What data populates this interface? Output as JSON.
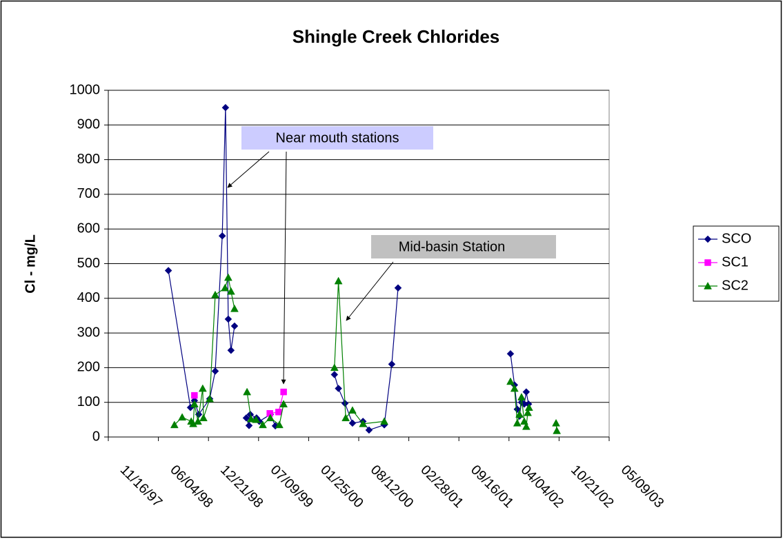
{
  "chart_data": {
    "type": "line",
    "title": "Shingle Creek Chlorides",
    "ylabel": "Cl - mg/L",
    "xlim": [
      "1997-11-16",
      "2003-05-09"
    ],
    "xticks": [
      {
        "value": "1997-11-16",
        "label": "11/16/97"
      },
      {
        "value": "1998-06-04",
        "label": "06/04/98"
      },
      {
        "value": "1998-12-21",
        "label": "12/21/98"
      },
      {
        "value": "1999-07-09",
        "label": "07/09/99"
      },
      {
        "value": "2000-01-25",
        "label": "01/25/00"
      },
      {
        "value": "2000-08-12",
        "label": "08/12/00"
      },
      {
        "value": "2001-02-28",
        "label": "02/28/01"
      },
      {
        "value": "2001-09-16",
        "label": "09/16/01"
      },
      {
        "value": "2002-04-04",
        "label": "04/04/02"
      },
      {
        "value": "2002-10-21",
        "label": "10/21/02"
      },
      {
        "value": "2003-05-09",
        "label": "05/09/03"
      }
    ],
    "ylim": [
      0,
      1000
    ],
    "yticks": [
      0,
      100,
      200,
      300,
      400,
      500,
      600,
      700,
      800,
      900,
      1000
    ],
    "grid": true,
    "legend": "right",
    "series": [
      {
        "name": "SCO",
        "color": "#000080",
        "marker": "diamond",
        "x": [
          "1998-07-14",
          "1998-10-10",
          "1998-10-26",
          "1998-11-12",
          "1998-12-26",
          "1999-01-17",
          "1999-02-14",
          "1999-02-27",
          "1999-03-10",
          "1999-03-21",
          "1999-04-04",
          null,
          "1999-05-21",
          "1999-06-01",
          "1999-06-06",
          "1999-07-01",
          "1999-07-12",
          "1999-08-25",
          "1999-09-14",
          null,
          "2000-05-07",
          "2000-05-23",
          "2000-06-18",
          "2000-07-18",
          "2000-08-29",
          "2000-09-22",
          "2000-11-22",
          "2000-12-22",
          "2001-01-16",
          null,
          "2002-04-10",
          "2002-04-26",
          "2002-05-07",
          "2002-05-16",
          "2002-05-24",
          "2002-06-04",
          "2002-06-12",
          "2002-06-21"
        ],
        "values": [
          480,
          85,
          105,
          65,
          110,
          190,
          580,
          950,
          340,
          250,
          320,
          null,
          55,
          33,
          65,
          55,
          45,
          65,
          32,
          null,
          180,
          140,
          97,
          40,
          45,
          20,
          35,
          210,
          430,
          null,
          240,
          150,
          80,
          60,
          100,
          95,
          130,
          95
        ]
      },
      {
        "name": "SC1",
        "color": "#ff00ff",
        "marker": "square",
        "x": [
          "1998-10-26",
          null,
          "1999-08-23",
          "1999-09-27",
          "1999-10-17"
        ],
        "values": [
          120,
          null,
          68,
          72,
          130
        ]
      },
      {
        "name": "SC2",
        "color": "#008000",
        "marker": "triangle",
        "x": [
          "1998-08-07",
          "1998-09-07",
          "1998-10-13",
          "1998-10-21",
          "1998-10-26",
          "1998-11-09",
          "1998-11-28",
          "1998-12-01",
          "1998-12-26",
          "1999-01-17",
          "1999-02-25",
          "1999-03-10",
          "1999-03-21",
          "1999-04-04",
          null,
          "1999-05-24",
          "1999-06-09",
          "1999-06-29",
          "1999-07-26",
          "1999-08-25",
          "1999-09-30",
          "1999-10-17",
          null,
          "2000-05-07",
          "2000-05-23",
          "2000-06-21",
          "2000-07-18",
          "2000-08-29",
          "2000-11-22",
          null,
          "2002-04-10",
          "2002-04-26",
          "2002-05-07",
          "2002-05-16",
          "2002-05-24",
          "2002-06-04",
          "2002-06-12",
          "2002-06-18",
          "2002-06-23",
          null,
          "2002-10-09",
          "2002-10-12"
        ],
        "values": [
          35,
          57,
          45,
          38,
          95,
          45,
          140,
          55,
          110,
          410,
          430,
          460,
          420,
          370,
          null,
          130,
          52,
          50,
          35,
          55,
          35,
          95,
          null,
          200,
          450,
          55,
          77,
          38,
          45,
          null,
          160,
          140,
          40,
          65,
          115,
          45,
          30,
          70,
          85,
          null,
          40,
          18
        ]
      }
    ],
    "annotations": [
      {
        "text": "Near mouth stations"
      },
      {
        "text": "Mid-basin Station"
      }
    ]
  }
}
